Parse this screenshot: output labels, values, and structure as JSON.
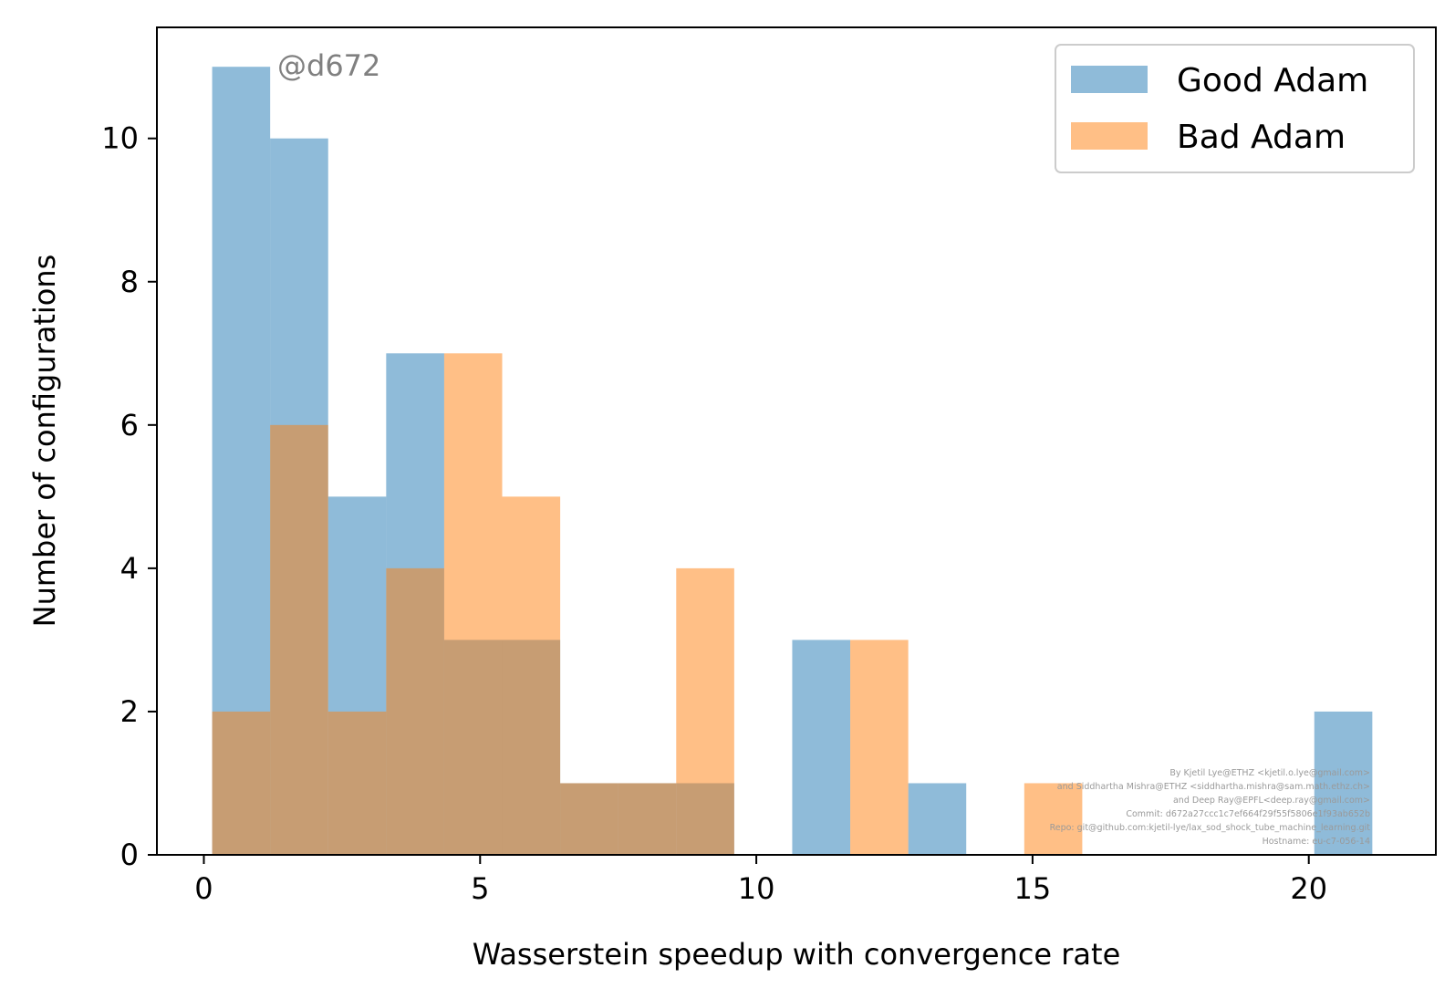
{
  "chart_data": {
    "type": "bar",
    "subtype": "overlapping-histogram",
    "title": "",
    "xlabel": "Wasserstein speedup with convergence rate",
    "ylabel": "Number of configurations",
    "xlim": [
      -0.85,
      22.3
    ],
    "ylim": [
      0,
      11.55
    ],
    "xticks": [
      0,
      5,
      10,
      15,
      20
    ],
    "yticks": [
      0,
      2,
      4,
      6,
      8,
      10
    ],
    "grid": false,
    "legend_position": "top-right",
    "bin_edges": [
      0.15,
      1.2,
      2.25,
      3.3,
      4.35,
      5.4,
      6.45,
      7.5,
      8.55,
      9.6,
      10.65,
      11.7,
      12.75,
      13.8,
      14.85,
      15.9,
      16.95,
      18.0,
      19.05,
      20.1,
      21.15
    ],
    "series": [
      {
        "name": "Good Adam",
        "color": "#1f77b4",
        "alpha": 0.5,
        "values": [
          11,
          10,
          5,
          7,
          3,
          3,
          1,
          1,
          1,
          0,
          3,
          0,
          1,
          0,
          0,
          0,
          0,
          0,
          0,
          2
        ]
      },
      {
        "name": "Bad Adam",
        "color": "#ff7f0e",
        "alpha": 0.5,
        "values": [
          2,
          6,
          2,
          4,
          7,
          5,
          1,
          1,
          4,
          0,
          0,
          3,
          0,
          0,
          1,
          0,
          0,
          0,
          0,
          0
        ]
      }
    ],
    "watermark": "@d672",
    "credits": [
      "By Kjetil Lye@ETHZ <kjetil.o.lye@gmail.com>",
      "and Siddhartha Mishra@ETHZ <siddhartha.mishra@sam.math.ethz.ch>",
      "and Deep Ray@EPFL<deep.ray@gmail.com>",
      "Commit: d672a27ccc1c7ef664f29f55f5806e1f93ab652b",
      "Repo: git@github.com:kjetil-lye/lax_sod_shock_tube_machine_learning.git",
      "Hostname: eu-c7-056-14"
    ]
  }
}
